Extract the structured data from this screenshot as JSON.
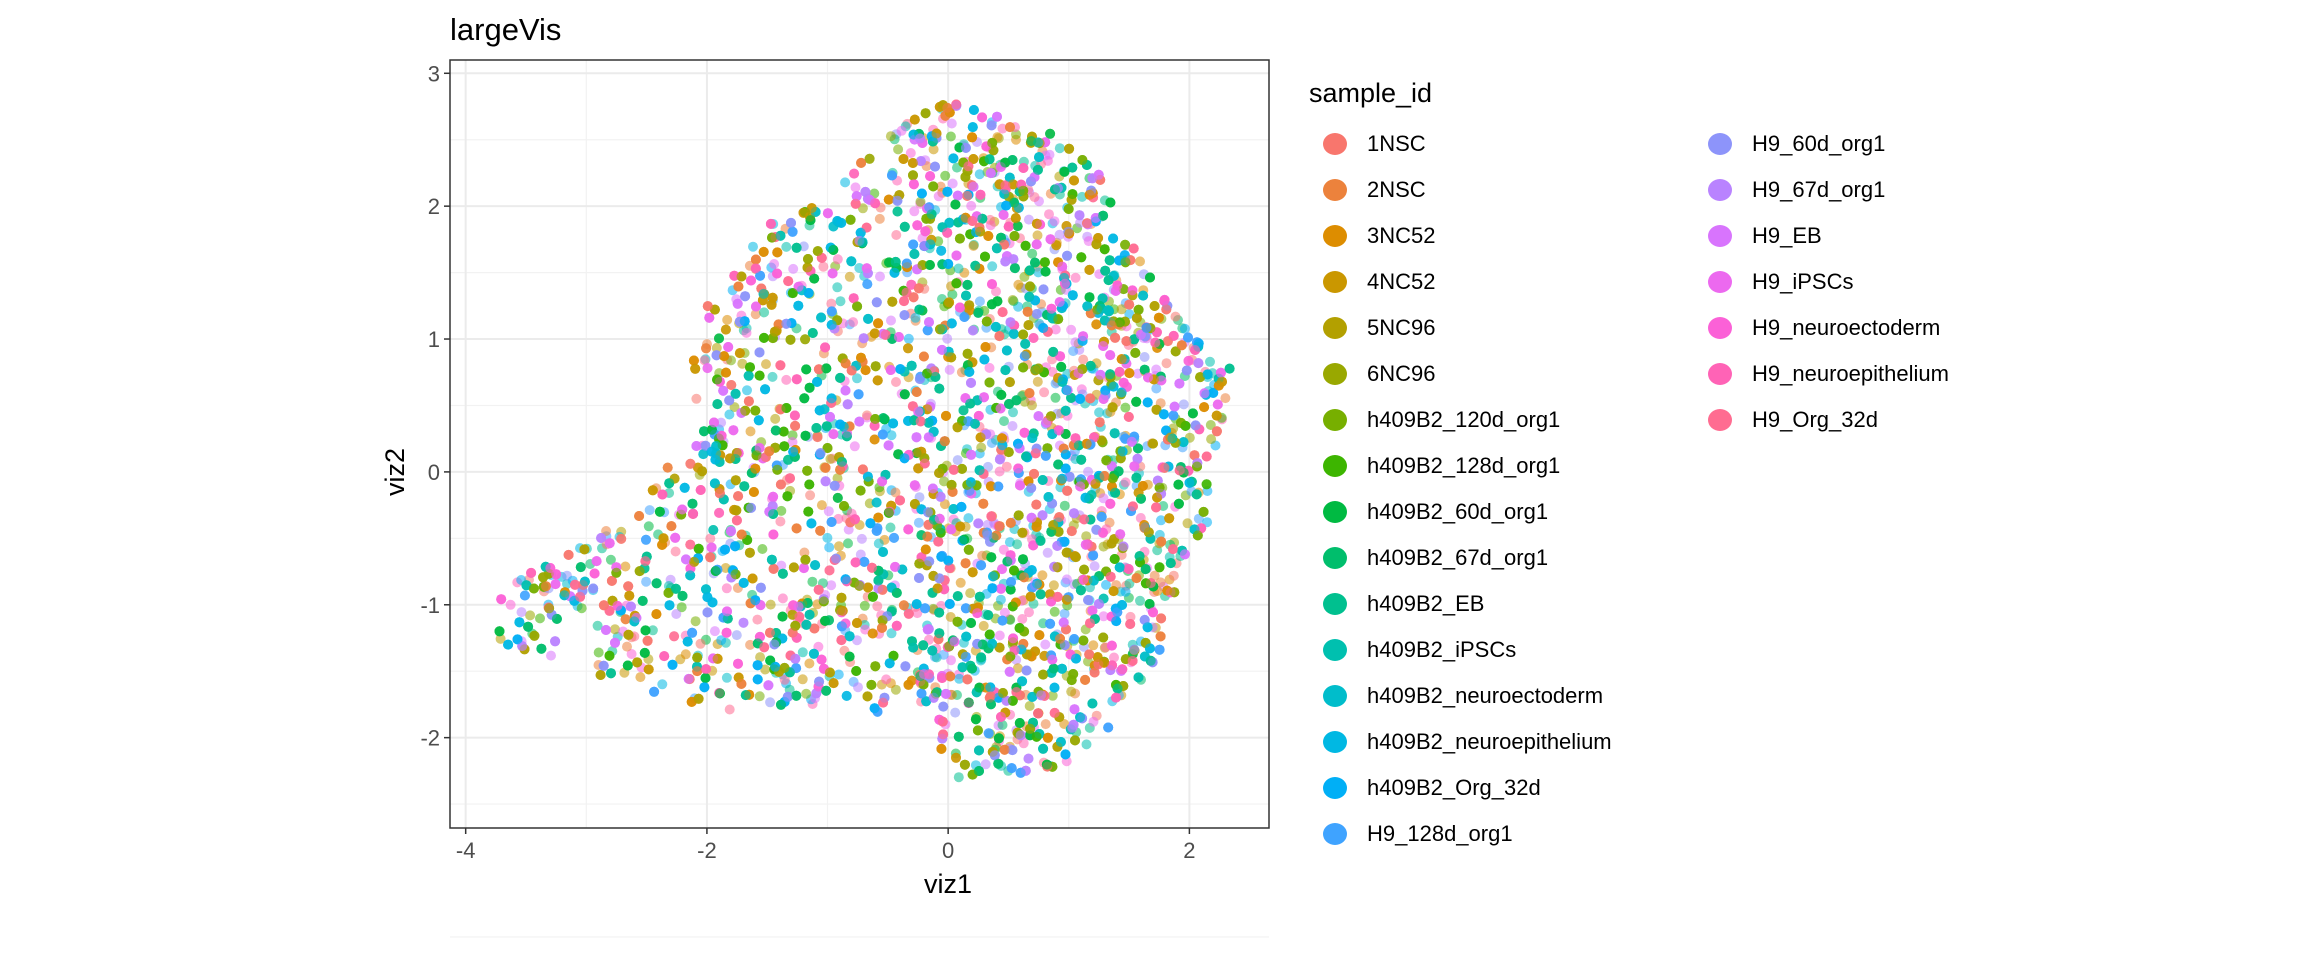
{
  "chart_data": {
    "type": "scatter",
    "title": "largeVis",
    "xlabel": "viz1",
    "ylabel": "viz2",
    "xlim": [
      -4.13,
      2.66
    ],
    "ylim": [
      -2.68,
      3.1
    ],
    "x_ticks": [
      "-4",
      "-2",
      "0",
      "2"
    ],
    "y_ticks": [
      "-2",
      "-1",
      "0",
      "1",
      "2",
      "3"
    ],
    "grid": true,
    "point_alpha": 0.55,
    "legend": {
      "title": "sample_id",
      "placement": "right",
      "entries": [
        {
          "label": "1NSC",
          "color": "#F8766D"
        },
        {
          "label": "2NSC",
          "color": "#EC823C"
        },
        {
          "label": "3NC52",
          "color": "#DD8D00"
        },
        {
          "label": "4NC52",
          "color": "#CA9700"
        },
        {
          "label": "5NC96",
          "color": "#B3A000"
        },
        {
          "label": "6NC96",
          "color": "#99A800"
        },
        {
          "label": "h409B2_120d_org1",
          "color": "#77AF00"
        },
        {
          "label": "h409B2_128d_org1",
          "color": "#3DB500"
        },
        {
          "label": "h409B2_60d_org1",
          "color": "#00BA42"
        },
        {
          "label": "h409B2_67d_org1",
          "color": "#00BE6C"
        },
        {
          "label": "h409B2_EB",
          "color": "#00C08F"
        },
        {
          "label": "h409B2_iPSCs",
          "color": "#00C0AF"
        },
        {
          "label": "h409B2_neuroectoderm",
          "color": "#00BDCB"
        },
        {
          "label": "h409B2_neuroepithelium",
          "color": "#00B8E3"
        },
        {
          "label": "h409B2_Org_32d",
          "color": "#00AFF6"
        },
        {
          "label": "H9_128d_org1",
          "color": "#3FA3FF"
        },
        {
          "label": "H9_60d_org1",
          "color": "#8D94FA"
        },
        {
          "label": "H9_67d_org1",
          "color": "#B983FF"
        },
        {
          "label": "H9_EB",
          "color": "#D874FD"
        },
        {
          "label": "H9_iPSCs",
          "color": "#EC69EF"
        },
        {
          "label": "H9_neuroectoderm",
          "color": "#FB61D7"
        },
        {
          "label": "H9_neuroepithelium",
          "color": "#FF63B6"
        },
        {
          "label": "H9_Org_32d",
          "color": "#FF6C91"
        }
      ]
    },
    "point_cloud": {
      "approx_points": 7000,
      "hull": [
        [
          -3.8,
          -1.05
        ],
        [
          -3.7,
          -0.85
        ],
        [
          -3.1,
          -0.6
        ],
        [
          -2.5,
          -0.2
        ],
        [
          -2.1,
          0.4
        ],
        [
          -2.15,
          0.8
        ],
        [
          -2.05,
          1.2
        ],
        [
          -1.75,
          1.5
        ],
        [
          -1.45,
          1.95
        ],
        [
          -0.95,
          2.05
        ],
        [
          -0.7,
          2.4
        ],
        [
          -0.3,
          2.65
        ],
        [
          -0.05,
          2.8
        ],
        [
          0.3,
          2.7
        ],
        [
          0.8,
          2.6
        ],
        [
          1.05,
          2.4
        ],
        [
          1.25,
          2.25
        ],
        [
          1.4,
          1.95
        ],
        [
          1.65,
          1.5
        ],
        [
          1.85,
          1.3
        ],
        [
          2.0,
          1.1
        ],
        [
          2.2,
          0.8
        ],
        [
          2.35,
          0.8
        ],
        [
          2.25,
          0.15
        ],
        [
          2.15,
          -0.45
        ],
        [
          1.9,
          -0.8
        ],
        [
          1.8,
          -1.3
        ],
        [
          1.5,
          -1.8
        ],
        [
          1.25,
          -2.0
        ],
        [
          0.9,
          -2.25
        ],
        [
          0.5,
          -2.3
        ],
        [
          0.0,
          -2.3
        ],
        [
          -0.15,
          -1.8
        ],
        [
          -0.4,
          -1.6
        ],
        [
          -0.5,
          -1.9
        ],
        [
          -0.7,
          -1.7
        ],
        [
          -1.05,
          -1.75
        ],
        [
          -1.8,
          -1.8
        ],
        [
          -2.2,
          -1.75
        ],
        [
          -2.6,
          -1.6
        ],
        [
          -3.0,
          -1.5
        ],
        [
          -3.5,
          -1.35
        ],
        [
          -3.8,
          -1.25
        ]
      ]
    }
  }
}
